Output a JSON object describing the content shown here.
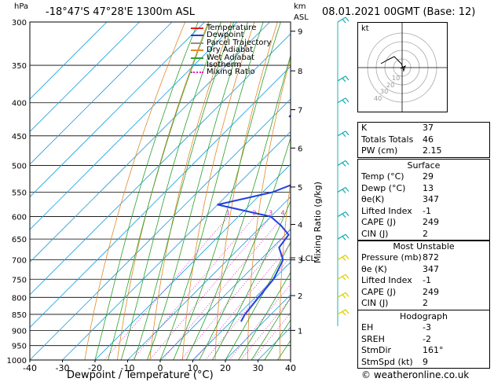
{
  "header": {
    "pressure_unit": "hPa",
    "location": "-18°47'S 47°28'E 1300m ASL",
    "height_unit_1": "km",
    "height_unit_2": "ASL",
    "datetime": "08.01.2021 00GMT (Base: 12)"
  },
  "colors": {
    "temperature": "#e02020",
    "dewpoint": "#2040e0",
    "parcel": "#909090",
    "dry_adiabat": "#e08a2a",
    "wet_adiabat": "#2aa02a",
    "isotherm": "#20a0e0",
    "mixing_ratio": "#e020c0",
    "wind": "#20b0b0",
    "wind_low": "#e0d000"
  },
  "legend": [
    {
      "label": "Temperature",
      "color": "#e02020",
      "style": "solid"
    },
    {
      "label": "Dewpoint",
      "color": "#2040e0",
      "style": "solid"
    },
    {
      "label": "Parcel Trajectory",
      "color": "#909090",
      "style": "solid"
    },
    {
      "label": "Dry Adiabat",
      "color": "#e08a2a",
      "style": "solid"
    },
    {
      "label": "Wet Adiabat",
      "color": "#2aa02a",
      "style": "solid"
    },
    {
      "label": "Isotherm",
      "color": "#20a0e0",
      "style": "solid"
    },
    {
      "label": "Mixing Ratio",
      "color": "#e020c0",
      "style": "dotted"
    }
  ],
  "chart_data": {
    "type": "line",
    "xlabel": "Dewpoint / Temperature (°C)",
    "ylabel": "hPa",
    "xlim": [
      -40,
      40
    ],
    "ylim": [
      1000,
      300
    ],
    "x_ticks": [
      -40,
      -30,
      -20,
      -10,
      0,
      10,
      20,
      30,
      40
    ],
    "pressure_ticks": [
      300,
      350,
      400,
      450,
      500,
      550,
      600,
      650,
      700,
      750,
      800,
      850,
      900,
      950,
      1000
    ],
    "km_ticks": [
      {
        "km": "9",
        "p": 310
      },
      {
        "km": "8",
        "p": 357
      },
      {
        "km": "7",
        "p": 410
      },
      {
        "km": "6",
        "p": 470
      },
      {
        "km": "5",
        "p": 540
      },
      {
        "km": "4",
        "p": 617
      },
      {
        "km": "3",
        "p": 700
      },
      {
        "km": "2",
        "p": 795
      },
      {
        "km": "1",
        "p": 900
      }
    ],
    "lcl_label": "LCL",
    "lcl_pressure": 695,
    "mixing_ratio_label": "Mixing Ratio (g/kg)",
    "mixing_ratio_values": [
      "1",
      "2",
      "3",
      "4",
      "6",
      "8",
      "10",
      "16",
      "20",
      "25"
    ],
    "mixing_ratio_label_pressure": 600,
    "series": [
      {
        "name": "Temperature",
        "points": [
          [
            872,
            29
          ],
          [
            850,
            26.5
          ],
          [
            800,
            22
          ],
          [
            750,
            18
          ],
          [
            700,
            14.5
          ],
          [
            660,
            13
          ],
          [
            640,
            12.5
          ],
          [
            620,
            13.5
          ],
          [
            600,
            10
          ],
          [
            550,
            6
          ],
          [
            500,
            -1
          ],
          [
            470,
            -5
          ],
          [
            450,
            -6
          ],
          [
            400,
            -12
          ],
          [
            370,
            -17
          ]
        ]
      },
      {
        "name": "Dewpoint",
        "points": [
          [
            872,
            13
          ],
          [
            850,
            12
          ],
          [
            800,
            11
          ],
          [
            750,
            10
          ],
          [
            700,
            7
          ],
          [
            670,
            2
          ],
          [
            640,
            1
          ],
          [
            620,
            -4
          ],
          [
            600,
            -10
          ],
          [
            575,
            -30
          ],
          [
            550,
            -17
          ],
          [
            530,
            -12
          ],
          [
            510,
            -14
          ],
          [
            495,
            -18
          ],
          [
            470,
            -13
          ],
          [
            455,
            -17
          ],
          [
            430,
            -23
          ],
          [
            420,
            -35
          ],
          [
            400,
            -35
          ],
          [
            330,
            -34
          ],
          [
            310,
            -37
          ],
          [
            300,
            -40
          ]
        ]
      },
      {
        "name": "Parcel Trajectory",
        "points": [
          [
            872,
            29
          ],
          [
            820,
            25
          ],
          [
            760,
            20
          ],
          [
            700,
            15
          ],
          [
            650,
            12.5
          ],
          [
            600,
            9
          ],
          [
            550,
            5
          ],
          [
            500,
            0
          ],
          [
            450,
            -5
          ],
          [
            400,
            -11
          ],
          [
            370,
            -16
          ]
        ]
      }
    ],
    "wind_barbs": [
      {
        "p": 300,
        "color": "#20b0b0"
      },
      {
        "p": 370,
        "color": "#20b0b0"
      },
      {
        "p": 400,
        "color": "#20b0b0"
      },
      {
        "p": 450,
        "color": "#20b0b0"
      },
      {
        "p": 500,
        "color": "#20b0b0"
      },
      {
        "p": 550,
        "color": "#20b0b0"
      },
      {
        "p": 600,
        "color": "#20b0b0"
      },
      {
        "p": 650,
        "color": "#20b0b0"
      },
      {
        "p": 700,
        "color": "#e0d000"
      },
      {
        "p": 750,
        "color": "#e0d000"
      },
      {
        "p": 800,
        "color": "#e0d000"
      },
      {
        "p": 850,
        "color": "#e0d000"
      }
    ]
  },
  "hodograph": {
    "unit": "kt",
    "ring_labels": [
      "10",
      "20",
      "30",
      "40"
    ]
  },
  "indices": [
    {
      "label": "K",
      "value": "37"
    },
    {
      "label": "Totals Totals",
      "value": "46"
    },
    {
      "label": "PW (cm)",
      "value": "2.15"
    }
  ],
  "surface": {
    "title": "Surface",
    "rows": [
      {
        "label": "Temp (°C)",
        "value": "29"
      },
      {
        "label": "Dewp (°C)",
        "value": "13"
      },
      {
        "label": "θe(K)",
        "value": "347"
      },
      {
        "label": "Lifted Index",
        "value": "-1"
      },
      {
        "label": "CAPE (J)",
        "value": "249"
      },
      {
        "label": "CIN (J)",
        "value": "2"
      }
    ]
  },
  "most_unstable": {
    "title": "Most Unstable",
    "rows": [
      {
        "label": "Pressure (mb)",
        "value": "872"
      },
      {
        "label": "θe (K)",
        "value": "347"
      },
      {
        "label": "Lifted Index",
        "value": "-1"
      },
      {
        "label": "CAPE (J)",
        "value": "249"
      },
      {
        "label": "CIN (J)",
        "value": "2"
      }
    ]
  },
  "hodograph_table": {
    "title": "Hodograph",
    "rows": [
      {
        "label": "EH",
        "value": "-3"
      },
      {
        "label": "SREH",
        "value": "-2"
      },
      {
        "label": "StmDir",
        "value": "161°"
      },
      {
        "label": "StmSpd (kt)",
        "value": "9"
      }
    ]
  },
  "footer": {
    "copyright": "© weatheronline.co.uk"
  }
}
